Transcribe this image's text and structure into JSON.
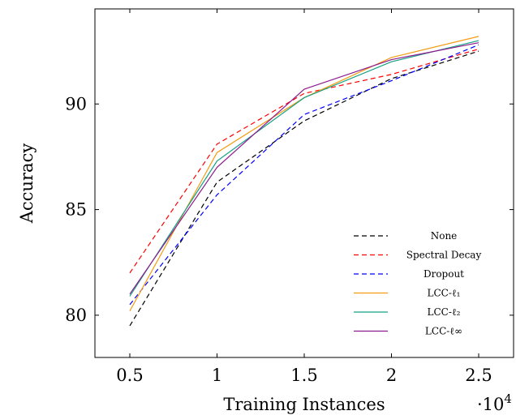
{
  "chart_data": {
    "type": "line",
    "xlabel": "Training Instances",
    "ylabel": "Accuracy",
    "x_multiplier_label": "·10",
    "x_multiplier_exp": "4",
    "x": [
      0.5,
      1,
      1.5,
      2,
      2.5
    ],
    "x_ticks": [
      "0.5",
      "1",
      "1.5",
      "2",
      "2.5"
    ],
    "y_ticks": [
      "80",
      "85",
      "90"
    ],
    "xlim": [
      0.3,
      2.7
    ],
    "ylim": [
      78,
      94.5
    ],
    "grid": false,
    "legend_position": "lower-right",
    "series": [
      {
        "name": "None",
        "values": [
          79.5,
          86.3,
          89.2,
          91.2,
          92.5
        ],
        "color": "#000000",
        "dash": true
      },
      {
        "name": "Spectral Decay",
        "values": [
          82.0,
          88.1,
          90.5,
          91.4,
          92.6
        ],
        "color": "#ff0000",
        "dash": true
      },
      {
        "name": "Dropout",
        "values": [
          80.5,
          85.7,
          89.5,
          91.1,
          92.8
        ],
        "color": "#0000ff",
        "dash": true
      },
      {
        "name": "LCC-ℓ₁",
        "values": [
          80.2,
          87.7,
          90.3,
          92.2,
          93.2
        ],
        "color": "#f39c12",
        "dash": false
      },
      {
        "name": "LCC-ℓ₂",
        "values": [
          80.9,
          87.3,
          90.3,
          92.0,
          93.0
        ],
        "color": "#16a085",
        "dash": false
      },
      {
        "name": "LCC-ℓ∞",
        "values": [
          81.0,
          87.0,
          90.7,
          92.1,
          92.9
        ],
        "color": "#8e1b8e",
        "dash": false
      }
    ]
  }
}
